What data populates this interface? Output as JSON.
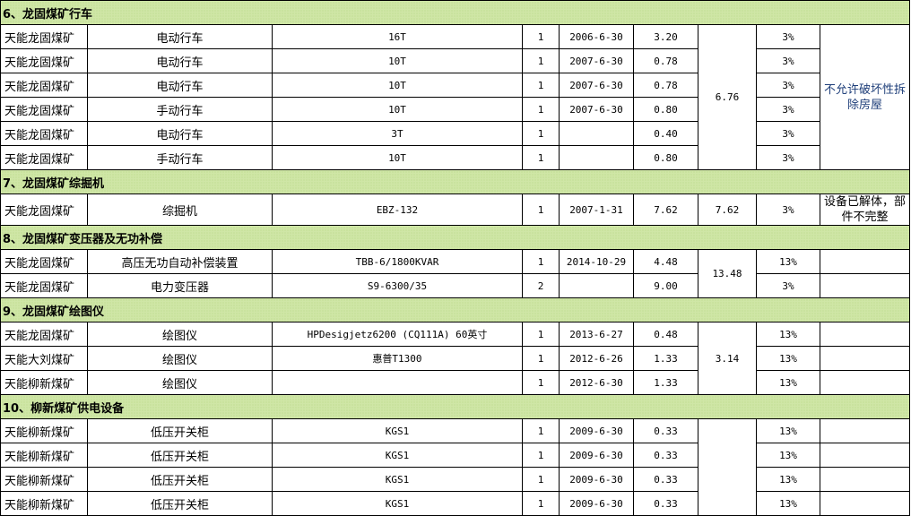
{
  "colors": {
    "section_bg": "#cfe6a6",
    "note_text": "#1f3f7a"
  },
  "sections": [
    {
      "title": "6、龙固煤矿行车",
      "total": "6.76",
      "note": "不允许破坏性拆除房屋",
      "note_shared": true,
      "rows": [
        {
          "mine": "天能龙固煤矿",
          "name": "电动行车",
          "model": "16T",
          "qty": "1",
          "date": "2006-6-30",
          "value": "3.20",
          "rate": "3%"
        },
        {
          "mine": "天能龙固煤矿",
          "name": "电动行车",
          "model": "10T",
          "qty": "1",
          "date": "2007-6-30",
          "value": "0.78",
          "rate": "3%"
        },
        {
          "mine": "天能龙固煤矿",
          "name": "电动行车",
          "model": "10T",
          "qty": "1",
          "date": "2007-6-30",
          "value": "0.78",
          "rate": "3%"
        },
        {
          "mine": "天能龙固煤矿",
          "name": "手动行车",
          "model": "10T",
          "qty": "1",
          "date": "2007-6-30",
          "value": "0.80",
          "rate": "3%"
        },
        {
          "mine": "天能龙固煤矿",
          "name": "电动行车",
          "model": "3T",
          "qty": "1",
          "date": "",
          "value": "0.40",
          "rate": "3%"
        },
        {
          "mine": "天能龙固煤矿",
          "name": "手动行车",
          "model": "10T",
          "qty": "1",
          "date": "",
          "value": "0.80",
          "rate": "3%"
        }
      ]
    },
    {
      "title": "7、龙固煤矿综掘机",
      "total": "7.62",
      "note": "设备已解体，部件不完整",
      "note_shared": true,
      "tall": true,
      "rows": [
        {
          "mine": "天能龙固煤矿",
          "name": "综掘机",
          "model": "EBZ-132",
          "qty": "1",
          "date": "2007-1-31",
          "value": "7.62",
          "rate": "3%"
        }
      ]
    },
    {
      "title": "8、龙固煤矿变压器及无功补偿",
      "total": "13.48",
      "rows": [
        {
          "mine": "天能龙固煤矿",
          "name": "高压无功自动补偿装置",
          "model": "TBB-6/1800KVAR",
          "qty": "1",
          "date": "2014-10-29",
          "value": "4.48",
          "rate": "13%"
        },
        {
          "mine": "天能龙固煤矿",
          "name": "电力变压器",
          "model": "S9-6300/35",
          "qty": "2",
          "date": "",
          "value": "9.00",
          "rate": "3%"
        }
      ]
    },
    {
      "title": "9、龙固煤矿绘图仪",
      "total": "3.14",
      "rows": [
        {
          "mine": "天能龙固煤矿",
          "name": "绘图仪",
          "model": "HPDesigjetz6200 (CQ111A) 60英寸",
          "qty": "1",
          "date": "2013-6-27",
          "value": "0.48",
          "rate": "13%"
        },
        {
          "mine": "天能大刘煤矿",
          "name": "绘图仪",
          "model": "惠普T1300",
          "qty": "1",
          "date": "2012-6-26",
          "value": "1.33",
          "rate": "13%"
        },
        {
          "mine": "天能柳新煤矿",
          "name": "绘图仪",
          "model": "",
          "qty": "1",
          "date": "2012-6-30",
          "value": "1.33",
          "rate": "13%"
        }
      ]
    },
    {
      "title": "10、柳新煤矿供电设备",
      "total": "",
      "rows": [
        {
          "mine": "天能柳新煤矿",
          "name": "低压开关柜",
          "model": "KGS1",
          "qty": "1",
          "date": "2009-6-30",
          "value": "0.33",
          "rate": "13%"
        },
        {
          "mine": "天能柳新煤矿",
          "name": "低压开关柜",
          "model": "KGS1",
          "qty": "1",
          "date": "2009-6-30",
          "value": "0.33",
          "rate": "13%"
        },
        {
          "mine": "天能柳新煤矿",
          "name": "低压开关柜",
          "model": "KGS1",
          "qty": "1",
          "date": "2009-6-30",
          "value": "0.33",
          "rate": "13%"
        },
        {
          "mine": "天能柳新煤矿",
          "name": "低压开关柜",
          "model": "KGS1",
          "qty": "1",
          "date": "2009-6-30",
          "value": "0.33",
          "rate": "13%"
        }
      ]
    }
  ]
}
